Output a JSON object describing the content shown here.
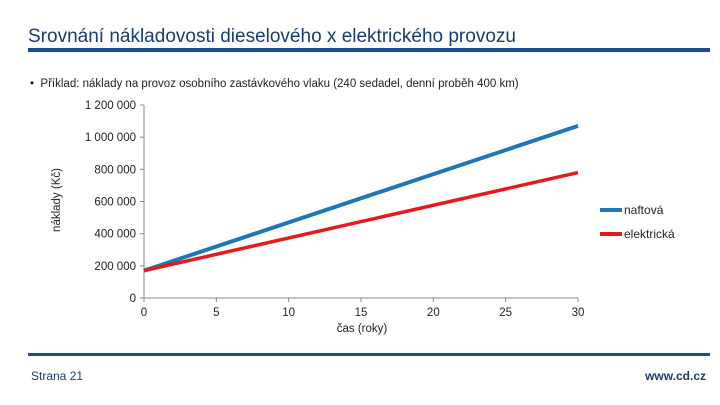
{
  "slide": {
    "title": "Srovnání nákladovosti dieselového x elektrického provozu",
    "bullet_marker": "•",
    "bullet_text": "Příklad: náklady na provoz osobního zastávkového vlaku (240 sedadel, denní proběh 400 km)",
    "page_label": "Strana 21",
    "website": "www.cd.cz"
  },
  "colors": {
    "title": "#1a3c6e",
    "rule": "#1e4d8c",
    "series_naftova": "#1f77b4",
    "series_elektricka": "#e41a1c"
  },
  "chart_data": {
    "type": "line",
    "title": "",
    "xlabel": "čas (roky)",
    "ylabel": "náklady (Kč)",
    "xlim": [
      0,
      30
    ],
    "ylim": [
      0,
      1200000
    ],
    "x_ticks": [
      "0",
      "5",
      "10",
      "15",
      "20",
      "25",
      "30"
    ],
    "y_ticks": [
      "0",
      "200 000",
      "400 000",
      "600 000",
      "800 000",
      "1 000 000",
      "1 200 000"
    ],
    "x_tick_values": [
      0,
      5,
      10,
      15,
      20,
      25,
      30
    ],
    "y_tick_values": [
      0,
      200000,
      400000,
      600000,
      800000,
      1000000,
      1200000
    ],
    "grid": false,
    "legend_position": "right",
    "series": [
      {
        "name": "naftová",
        "color": "#1f77b4",
        "x": [
          0,
          30
        ],
        "y": [
          170000,
          1070000
        ]
      },
      {
        "name": "elektrická",
        "color": "#e41a1c",
        "x": [
          0,
          30
        ],
        "y": [
          170000,
          780000
        ]
      }
    ]
  }
}
